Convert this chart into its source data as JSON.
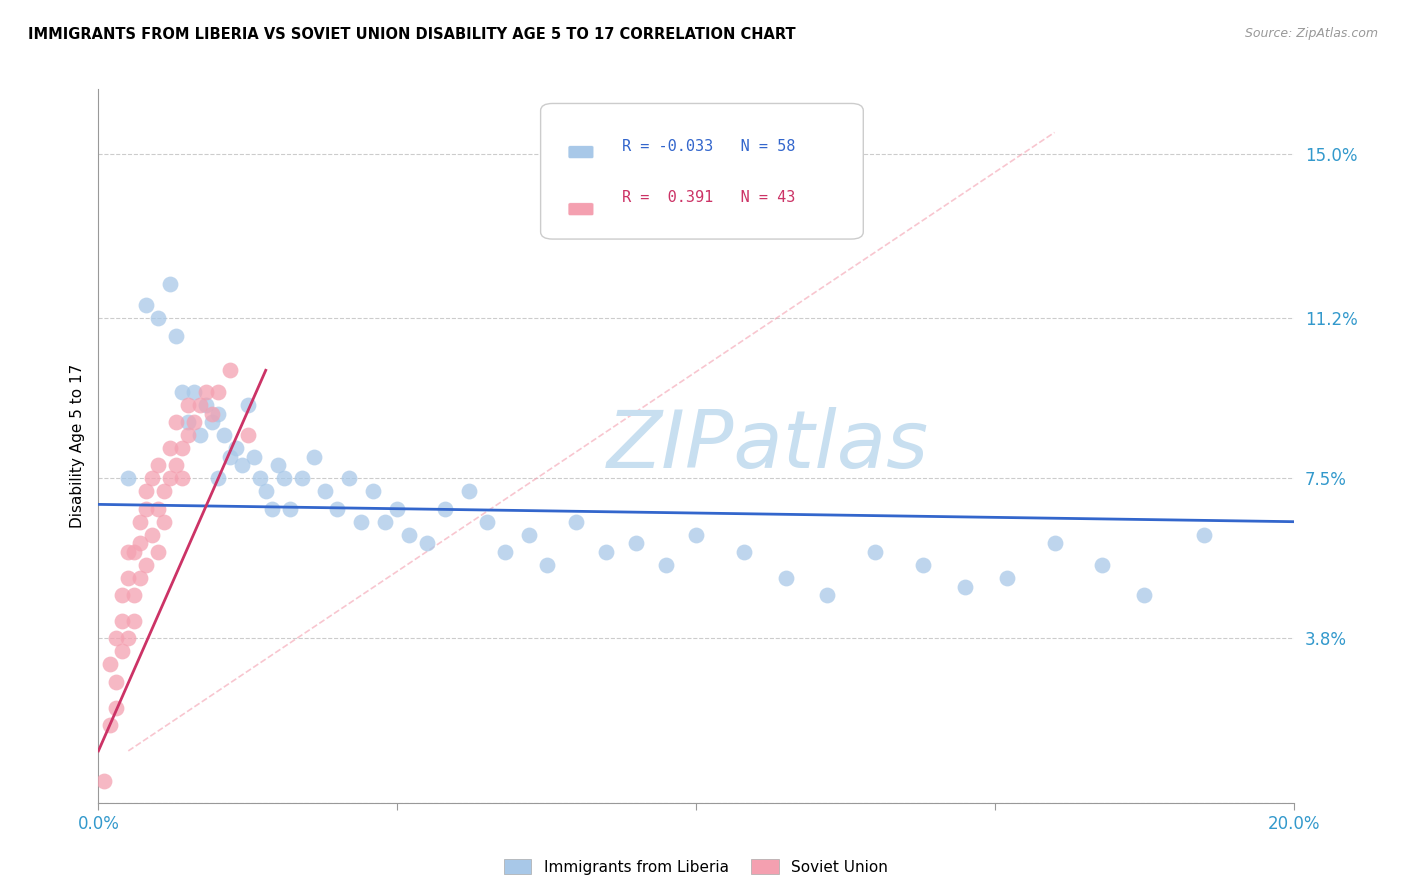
{
  "title": "IMMIGRANTS FROM LIBERIA VS SOVIET UNION DISABILITY AGE 5 TO 17 CORRELATION CHART",
  "source": "Source: ZipAtlas.com",
  "ylabel": "Disability Age 5 to 17",
  "y_ticks": [
    0.0,
    0.038,
    0.075,
    0.112,
    0.15
  ],
  "y_tick_labels": [
    "",
    "3.8%",
    "7.5%",
    "11.2%",
    "15.0%"
  ],
  "x_lim": [
    0.0,
    0.2
  ],
  "y_lim": [
    0.0,
    0.165
  ],
  "legend1_label": "Immigrants from Liberia",
  "legend2_label": "Soviet Union",
  "r1": "-0.033",
  "n1": "58",
  "r2": "0.391",
  "n2": "43",
  "color_blue": "#a8c8e8",
  "color_pink": "#f4a0b0",
  "color_line_blue": "#3366cc",
  "color_line_pink": "#cc3366",
  "watermark_color": "#c8dff0",
  "liberia_x": [
    0.005,
    0.008,
    0.01,
    0.012,
    0.013,
    0.014,
    0.015,
    0.016,
    0.017,
    0.018,
    0.019,
    0.02,
    0.02,
    0.021,
    0.022,
    0.023,
    0.024,
    0.025,
    0.026,
    0.027,
    0.028,
    0.029,
    0.03,
    0.031,
    0.032,
    0.034,
    0.036,
    0.038,
    0.04,
    0.042,
    0.044,
    0.046,
    0.048,
    0.05,
    0.052,
    0.055,
    0.058,
    0.062,
    0.065,
    0.068,
    0.072,
    0.075,
    0.08,
    0.085,
    0.09,
    0.095,
    0.1,
    0.108,
    0.115,
    0.122,
    0.13,
    0.138,
    0.145,
    0.152,
    0.16,
    0.168,
    0.175,
    0.185
  ],
  "liberia_y": [
    0.075,
    0.115,
    0.112,
    0.12,
    0.108,
    0.095,
    0.088,
    0.095,
    0.085,
    0.092,
    0.088,
    0.09,
    0.075,
    0.085,
    0.08,
    0.082,
    0.078,
    0.092,
    0.08,
    0.075,
    0.072,
    0.068,
    0.078,
    0.075,
    0.068,
    0.075,
    0.08,
    0.072,
    0.068,
    0.075,
    0.065,
    0.072,
    0.065,
    0.068,
    0.062,
    0.06,
    0.068,
    0.072,
    0.065,
    0.058,
    0.062,
    0.055,
    0.065,
    0.058,
    0.06,
    0.055,
    0.062,
    0.058,
    0.052,
    0.048,
    0.058,
    0.055,
    0.05,
    0.052,
    0.06,
    0.055,
    0.048,
    0.062
  ],
  "soviet_x": [
    0.001,
    0.002,
    0.002,
    0.003,
    0.003,
    0.003,
    0.004,
    0.004,
    0.004,
    0.005,
    0.005,
    0.005,
    0.006,
    0.006,
    0.006,
    0.007,
    0.007,
    0.007,
    0.008,
    0.008,
    0.008,
    0.009,
    0.009,
    0.01,
    0.01,
    0.01,
    0.011,
    0.011,
    0.012,
    0.012,
    0.013,
    0.013,
    0.014,
    0.014,
    0.015,
    0.015,
    0.016,
    0.017,
    0.018,
    0.019,
    0.02,
    0.022,
    0.025
  ],
  "soviet_y": [
    0.005,
    0.018,
    0.032,
    0.022,
    0.038,
    0.028,
    0.035,
    0.042,
    0.048,
    0.038,
    0.052,
    0.058,
    0.042,
    0.048,
    0.058,
    0.052,
    0.06,
    0.065,
    0.055,
    0.068,
    0.072,
    0.062,
    0.075,
    0.068,
    0.058,
    0.078,
    0.072,
    0.065,
    0.075,
    0.082,
    0.078,
    0.088,
    0.082,
    0.075,
    0.092,
    0.085,
    0.088,
    0.092,
    0.095,
    0.09,
    0.095,
    0.1,
    0.085
  ]
}
